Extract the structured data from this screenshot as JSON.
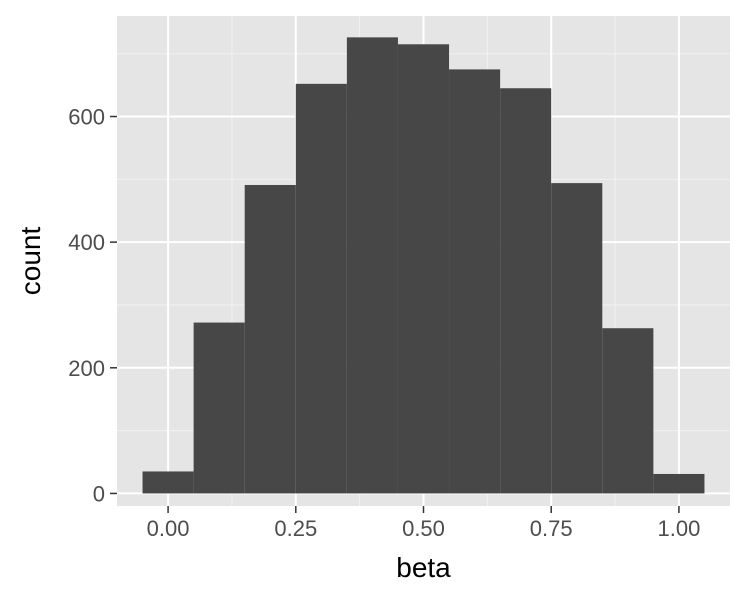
{
  "chart_data": {
    "type": "bar",
    "title": "",
    "xlabel": "beta",
    "ylabel": "count",
    "xlim": [
      -0.1,
      1.1
    ],
    "ylim": [
      -20,
      760
    ],
    "x_ticks": [
      0.0,
      0.25,
      0.5,
      0.75,
      1.0
    ],
    "x_tick_labels": [
      "0.00",
      "0.25",
      "0.50",
      "0.75",
      "1.00"
    ],
    "y_ticks": [
      0,
      200,
      400,
      600
    ],
    "y_tick_labels": [
      "0",
      "200",
      "400",
      "600"
    ],
    "bin_width": 0.1,
    "bins": [
      {
        "center": 0.0,
        "count": 35
      },
      {
        "center": 0.1,
        "count": 272
      },
      {
        "center": 0.2,
        "count": 491
      },
      {
        "center": 0.3,
        "count": 652
      },
      {
        "center": 0.4,
        "count": 726
      },
      {
        "center": 0.5,
        "count": 715
      },
      {
        "center": 0.6,
        "count": 675
      },
      {
        "center": 0.7,
        "count": 645
      },
      {
        "center": 0.8,
        "count": 494
      },
      {
        "center": 0.9,
        "count": 263
      },
      {
        "center": 1.0,
        "count": 31
      }
    ],
    "grid": true,
    "legend": "none",
    "colors": {
      "panel_background": "#e5e5e5",
      "grid_major": "#ffffff",
      "grid_minor": "#f2f2f2",
      "bar_fill": "#474747",
      "axis_text": "#4d4d4d",
      "axis_title": "#000000",
      "tick_mark": "#333333"
    }
  }
}
